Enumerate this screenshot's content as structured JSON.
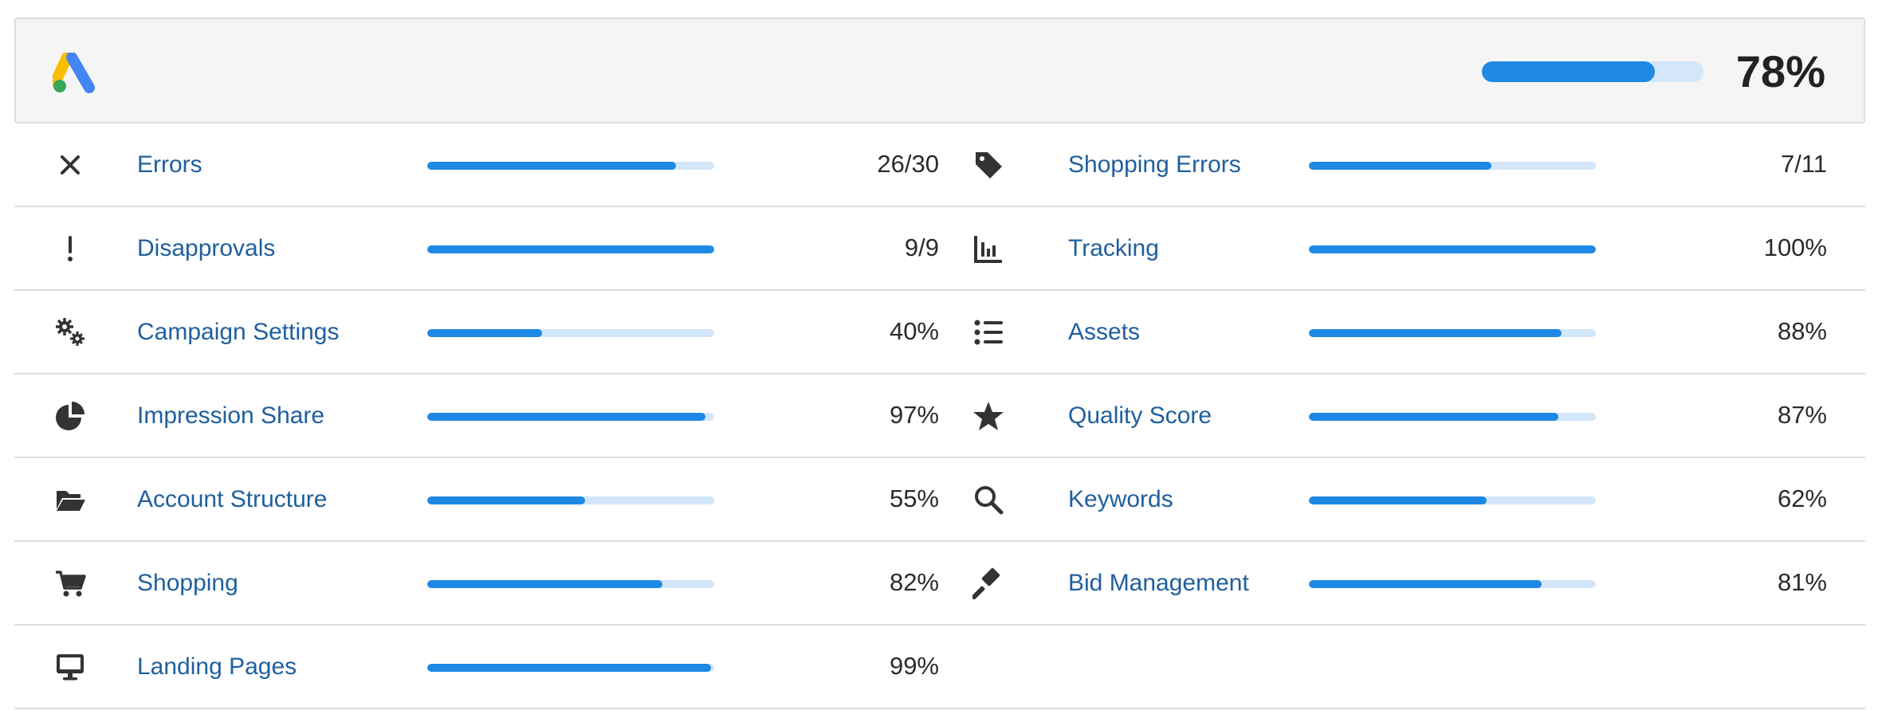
{
  "header": {
    "logo_icon": "google-ads-logo-icon",
    "overall_score": 0.78,
    "overall_label": "78%"
  },
  "rows": [
    {
      "left": {
        "icon": "close-icon",
        "label": "Errors",
        "value": "26/30",
        "progress": 0.867
      },
      "right": {
        "icon": "tag-icon",
        "label": "Shopping Errors",
        "value": "7/11",
        "progress": 0.636
      }
    },
    {
      "left": {
        "icon": "exclamation-icon",
        "label": "Disapprovals",
        "value": "9/9",
        "progress": 1.0
      },
      "right": {
        "icon": "chart-bar-icon",
        "label": "Tracking",
        "value": "100%",
        "progress": 1.0
      }
    },
    {
      "left": {
        "icon": "gears-icon",
        "label": "Campaign Settings",
        "value": "40%",
        "progress": 0.4
      },
      "right": {
        "icon": "list-icon",
        "label": "Assets",
        "value": "88%",
        "progress": 0.88
      }
    },
    {
      "left": {
        "icon": "pie-chart-icon",
        "label": "Impression Share",
        "value": "97%",
        "progress": 0.97
      },
      "right": {
        "icon": "star-icon",
        "label": "Quality Score",
        "value": "87%",
        "progress": 0.87
      }
    },
    {
      "left": {
        "icon": "folder-open-icon",
        "label": "Account Structure",
        "value": "55%",
        "progress": 0.55
      },
      "right": {
        "icon": "search-icon",
        "label": "Keywords",
        "value": "62%",
        "progress": 0.62
      }
    },
    {
      "left": {
        "icon": "cart-icon",
        "label": "Shopping",
        "value": "82%",
        "progress": 0.82
      },
      "right": {
        "icon": "gavel-icon",
        "label": "Bid Management",
        "value": "81%",
        "progress": 0.81
      }
    },
    {
      "left": {
        "icon": "desktop-icon",
        "label": "Landing Pages",
        "value": "99%",
        "progress": 0.99
      },
      "right": null
    }
  ],
  "colors": {
    "accent": "#1e88e5",
    "track": "#d3e6fa",
    "link": "#1f5f9e",
    "icon": "#333333"
  }
}
